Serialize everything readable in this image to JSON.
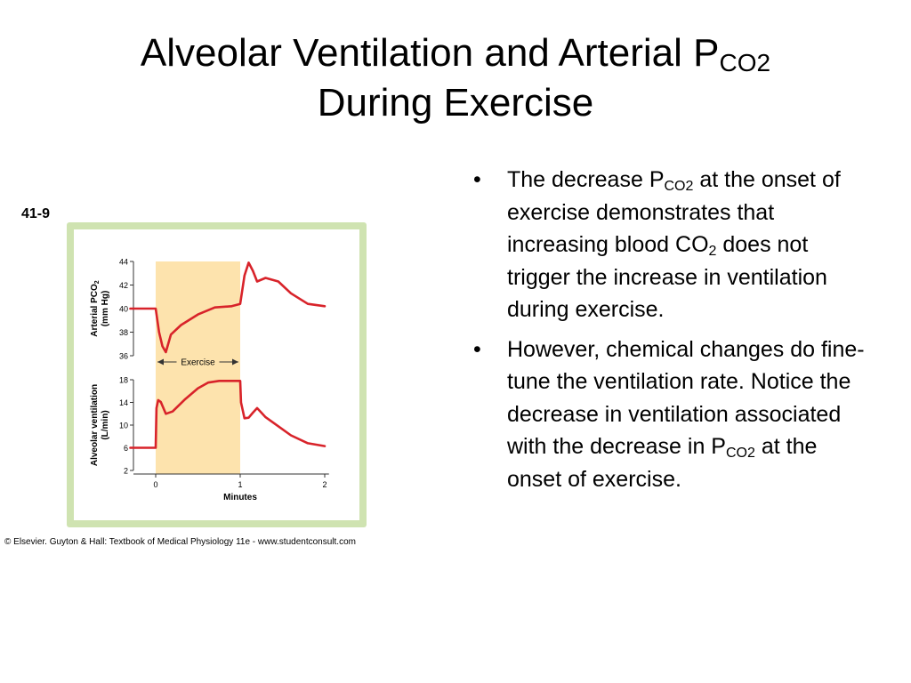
{
  "slide": {
    "title_line1_main": "Alveolar Ventilation and Arterial P",
    "title_line1_sub": "CO2",
    "title_line2": "During Exercise"
  },
  "bullets": [
    {
      "bullet_char": "•",
      "parts": [
        {
          "t": "The decrease P"
        },
        {
          "t": "CO2",
          "sub": true
        },
        {
          "t": " at the onset of exercise demonstrates that increasing blood CO"
        },
        {
          "t": "2",
          "sub": true
        },
        {
          "t": " does not trigger the increase in ventilation during exercise."
        }
      ]
    },
    {
      "bullet_char": "•",
      "parts": [
        {
          "t": "However, chemical changes do fine-tune the ventilation rate.  Notice the decrease in ventilation associated with the decrease in P"
        },
        {
          "t": "CO2",
          "sub": true
        },
        {
          "t": " at the onset of exercise."
        }
      ]
    }
  ],
  "figure": {
    "figure_number": "41-9",
    "credit": "© Elsevier. Guyton & Hall: Textbook of Medical Physiology 11e - www.studentconsult.com",
    "exercise_label": "Exercise",
    "colors": {
      "frame": "#cfe3b1",
      "panel": "#ffffff",
      "exercise_band": "#fde3ad",
      "curve": "#d8232a",
      "axis": "#333333"
    }
  },
  "chart_data": [
    {
      "type": "line",
      "ylabel_line1": "Arterial PCO",
      "ylabel_sub": "2",
      "ylabel_line2": "(mm Hg)",
      "ylim": [
        36,
        44
      ],
      "yticks": [
        36,
        38,
        40,
        42,
        44
      ],
      "xlim": [
        -0.3,
        2.1
      ],
      "exercise_span": [
        0,
        1
      ],
      "series": [
        {
          "x": [
            -0.3,
            0.0,
            0.04,
            0.08,
            0.12,
            0.18,
            0.3,
            0.5,
            0.7,
            0.9,
            1.0,
            1.05,
            1.1,
            1.15,
            1.2,
            1.3,
            1.45,
            1.6,
            1.8,
            2.0
          ],
          "y": [
            40,
            40,
            38,
            36.8,
            36.3,
            37.8,
            38.6,
            39.5,
            40.1,
            40.2,
            40.4,
            42.8,
            43.9,
            43.2,
            42.3,
            42.6,
            42.3,
            41.3,
            40.4,
            40.2
          ]
        }
      ]
    },
    {
      "type": "line",
      "ylabel_line1": "Alveolar ventilation",
      "ylabel_line2": "(L/min)",
      "ylim": [
        2,
        18
      ],
      "yticks": [
        2,
        6,
        10,
        14,
        18
      ],
      "xlim": [
        -0.3,
        2.1
      ],
      "xticks": [
        0,
        1,
        2
      ],
      "xlabel": "Minutes",
      "exercise_span": [
        0,
        1
      ],
      "series": [
        {
          "x": [
            -0.3,
            0.0,
            0.01,
            0.03,
            0.06,
            0.12,
            0.2,
            0.35,
            0.5,
            0.62,
            0.75,
            0.9,
            1.0,
            1.01,
            1.05,
            1.1,
            1.15,
            1.2,
            1.25,
            1.3,
            1.45,
            1.6,
            1.8,
            2.0
          ],
          "y": [
            6,
            6,
            13,
            14.4,
            14.1,
            12,
            12.4,
            14.6,
            16.5,
            17.5,
            17.8,
            17.8,
            17.8,
            14,
            11.2,
            11.3,
            12.2,
            13,
            12.2,
            11.4,
            9.8,
            8.2,
            6.8,
            6.3
          ]
        }
      ]
    }
  ]
}
